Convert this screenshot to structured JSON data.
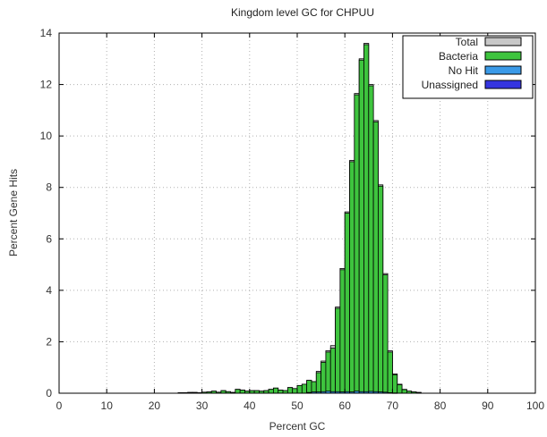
{
  "chart_data": {
    "type": "bar",
    "title": "Kingdom level GC for CHPUU",
    "xlabel": "Percent GC",
    "ylabel": "Percent Gene Hits",
    "xlim": [
      0,
      100
    ],
    "ylim": [
      0,
      14
    ],
    "x_ticks": [
      "0",
      "10",
      "20",
      "30",
      "40",
      "50",
      "60",
      "70",
      "80",
      "90",
      "100"
    ],
    "y_ticks": [
      "0",
      "2",
      "4",
      "6",
      "8",
      "10",
      "12",
      "14"
    ],
    "grid": true,
    "legend_position": "top-right",
    "bin_width": 1,
    "x": [
      25,
      26,
      27,
      28,
      29,
      30,
      31,
      32,
      33,
      34,
      35,
      36,
      37,
      38,
      39,
      40,
      41,
      42,
      43,
      44,
      45,
      46,
      47,
      48,
      49,
      50,
      51,
      52,
      53,
      54,
      55,
      56,
      57,
      58,
      59,
      60,
      61,
      62,
      63,
      64,
      65,
      66,
      67,
      68,
      69,
      70,
      71,
      72,
      73,
      74,
      75
    ],
    "series": [
      {
        "name": "Total",
        "color": "#c8c8c8",
        "values": [
          0.02,
          0.02,
          0.03,
          0.03,
          0.02,
          0.04,
          0.05,
          0.08,
          0.04,
          0.1,
          0.06,
          0.03,
          0.15,
          0.12,
          0.08,
          0.1,
          0.1,
          0.08,
          0.1,
          0.15,
          0.2,
          0.12,
          0.1,
          0.22,
          0.18,
          0.3,
          0.35,
          0.5,
          0.45,
          0.85,
          1.25,
          1.65,
          1.85,
          3.35,
          4.85,
          7.05,
          9.05,
          11.65,
          13.0,
          13.6,
          12.0,
          10.6,
          8.1,
          4.65,
          1.65,
          0.75,
          0.35,
          0.15,
          0.08,
          0.05,
          0.03
        ]
      },
      {
        "name": "Bacteria",
        "color": "#3ec43e",
        "values": [
          0.02,
          0.02,
          0.03,
          0.03,
          0.02,
          0.04,
          0.05,
          0.08,
          0.04,
          0.1,
          0.06,
          0.03,
          0.15,
          0.12,
          0.08,
          0.1,
          0.1,
          0.08,
          0.1,
          0.15,
          0.2,
          0.12,
          0.1,
          0.22,
          0.18,
          0.3,
          0.35,
          0.5,
          0.45,
          0.8,
          1.2,
          1.6,
          1.75,
          3.3,
          4.8,
          7.0,
          9.0,
          11.6,
          12.95,
          13.55,
          11.95,
          10.55,
          8.05,
          4.6,
          1.6,
          0.72,
          0.33,
          0.14,
          0.08,
          0.05,
          0.03
        ]
      },
      {
        "name": "No Hit",
        "color": "#3a9ae8",
        "values": [
          0,
          0,
          0,
          0,
          0,
          0,
          0,
          0,
          0,
          0,
          0,
          0,
          0,
          0,
          0,
          0,
          0,
          0,
          0,
          0,
          0,
          0,
          0,
          0,
          0,
          0,
          0,
          0.03,
          0.05,
          0.05,
          0.06,
          0.08,
          0.06,
          0.06,
          0.05,
          0.06,
          0.05,
          0.08,
          0.06,
          0.06,
          0.07,
          0.06,
          0.05,
          0.04,
          0.02,
          0.01,
          0,
          0,
          0,
          0,
          0
        ]
      },
      {
        "name": "Unassigned",
        "color": "#3535e0",
        "values": [
          0,
          0,
          0,
          0,
          0,
          0,
          0,
          0,
          0,
          0,
          0,
          0,
          0,
          0,
          0,
          0,
          0,
          0,
          0,
          0,
          0,
          0,
          0,
          0,
          0,
          0,
          0,
          0,
          0,
          0,
          0,
          0,
          0,
          0,
          0,
          0,
          0,
          0,
          0,
          0,
          0,
          0,
          0,
          0,
          0,
          0,
          0,
          0,
          0,
          0,
          0
        ]
      }
    ]
  }
}
